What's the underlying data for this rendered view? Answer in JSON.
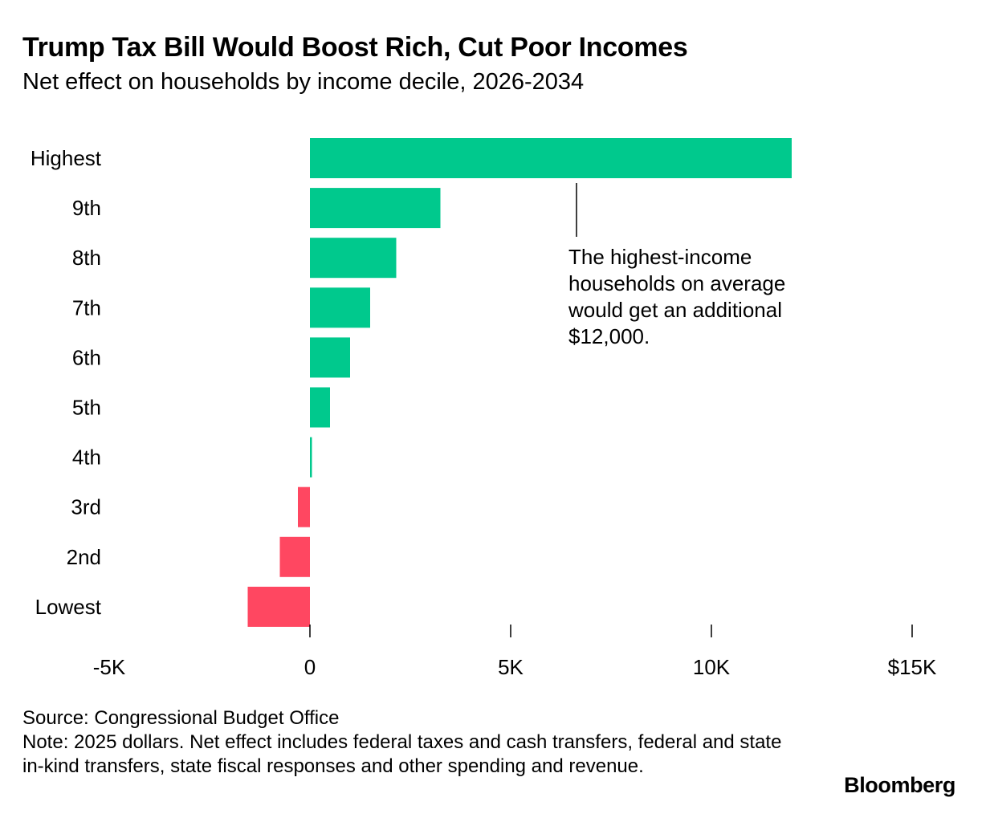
{
  "header": {
    "title": "Trump Tax Bill Would Boost Rich, Cut Poor Incomes",
    "subtitle": "Net effect on households by income decile, 2026-2034"
  },
  "chart_data": {
    "type": "bar",
    "orientation": "horizontal",
    "categories": [
      "Highest",
      "9th",
      "8th",
      "7th",
      "6th",
      "5th",
      "4th",
      "3rd",
      "2nd",
      "Lowest"
    ],
    "values": [
      12000,
      3250,
      2150,
      1500,
      1000,
      500,
      50,
      -300,
      -750,
      -1550
    ],
    "x_ticks": [
      -5000,
      0,
      5000,
      10000,
      15000
    ],
    "x_tick_labels": [
      "-5K",
      "0",
      "5K",
      "10K",
      "$15K"
    ],
    "xlim": [
      -5000,
      15000
    ],
    "title": "Trump Tax Bill Would Boost Rich, Cut Poor Incomes",
    "subtitle": "Net effect on households by income decile, 2026-2034",
    "xlabel": "",
    "ylabel": "",
    "grid": false,
    "colors": {
      "positive": "#00c98d",
      "negative": "#ff4761",
      "text": "#000000"
    },
    "annotation": {
      "text": "The highest-income households on average would get an additional $12,000.",
      "target_category": "Highest"
    }
  },
  "footer": {
    "source": "Source: Congressional Budget Office",
    "note": "Note: 2025 dollars. Net effect includes federal taxes and cash transfers, federal and state in-kind transfers, state fiscal responses and other spending and revenue."
  },
  "branding": {
    "logo_text": "Bloomberg"
  }
}
